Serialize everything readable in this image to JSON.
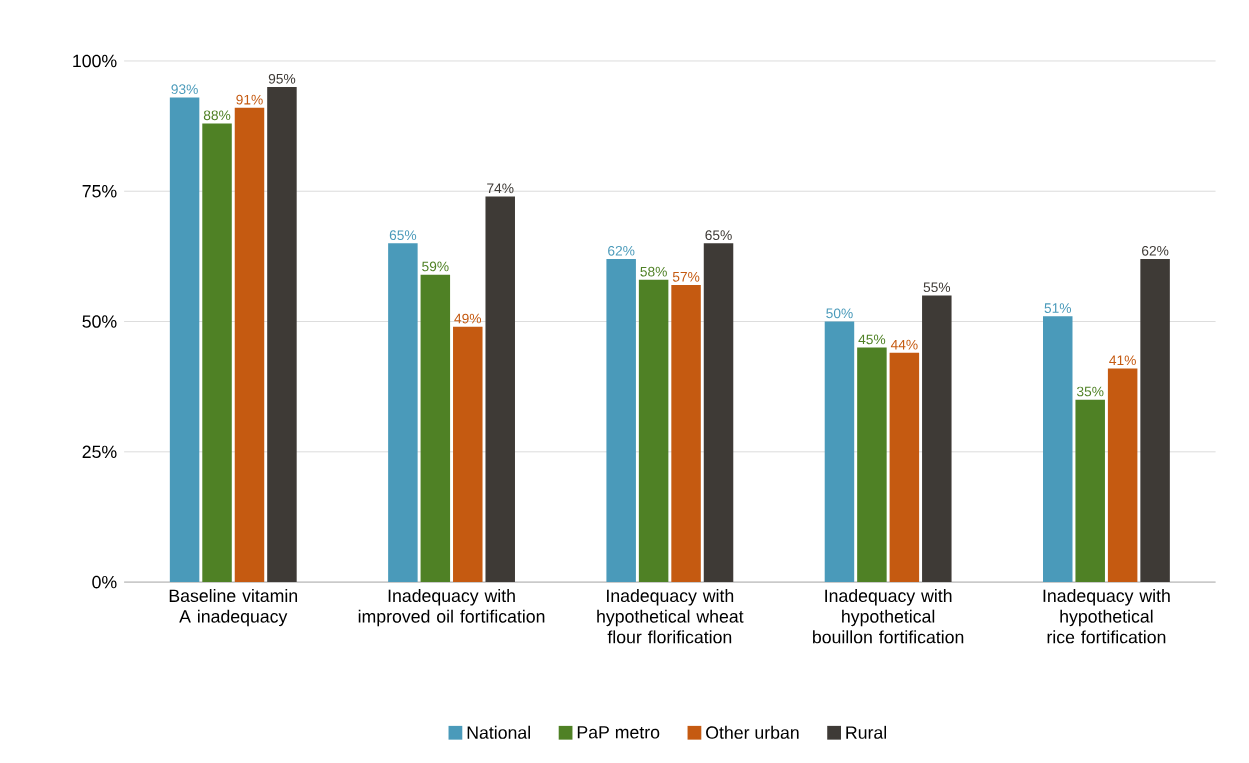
{
  "chart_data": {
    "type": "bar",
    "categories": [
      "Baseline vitamin A inadequacy",
      "Inadequacy with improved oil fortification",
      "Inadequacy with hypothetical wheat flour florification",
      "Inadequacy with hypothetical bouillon fortification",
      "Inadequacy with hypothetical rice fortification"
    ],
    "series": [
      {
        "name": "National",
        "color": "#4a9aba",
        "values": [
          93,
          65,
          62,
          50,
          51
        ],
        "value_labels": [
          "93%",
          "65%",
          "62%",
          "50%",
          "51%"
        ]
      },
      {
        "name": "PaP metro",
        "color": "#4f8125",
        "values": [
          88,
          59,
          58,
          45,
          35
        ],
        "value_labels": [
          "88%",
          "59%",
          "58%",
          "45%",
          "35%"
        ]
      },
      {
        "name": "Other urban",
        "color": "#c55a11",
        "values": [
          91,
          49,
          57,
          44,
          41
        ],
        "value_labels": [
          "91%",
          "49%",
          "57%",
          "44%",
          "41%"
        ]
      },
      {
        "name": "Rural",
        "color": "#3e3a36",
        "values": [
          95,
          74,
          65,
          55,
          62
        ],
        "value_labels": [
          "95%",
          "74%",
          "65%",
          "55%",
          "62%"
        ]
      }
    ],
    "ylim": [
      0,
      100
    ],
    "yticks": [
      {
        "value": 0,
        "label": "0%"
      },
      {
        "value": 25,
        "label": "25%"
      },
      {
        "value": 50,
        "label": "50%"
      },
      {
        "value": 75,
        "label": "75%"
      },
      {
        "value": 100,
        "label": "100%"
      }
    ],
    "grid": "y",
    "legend": "bottom"
  }
}
